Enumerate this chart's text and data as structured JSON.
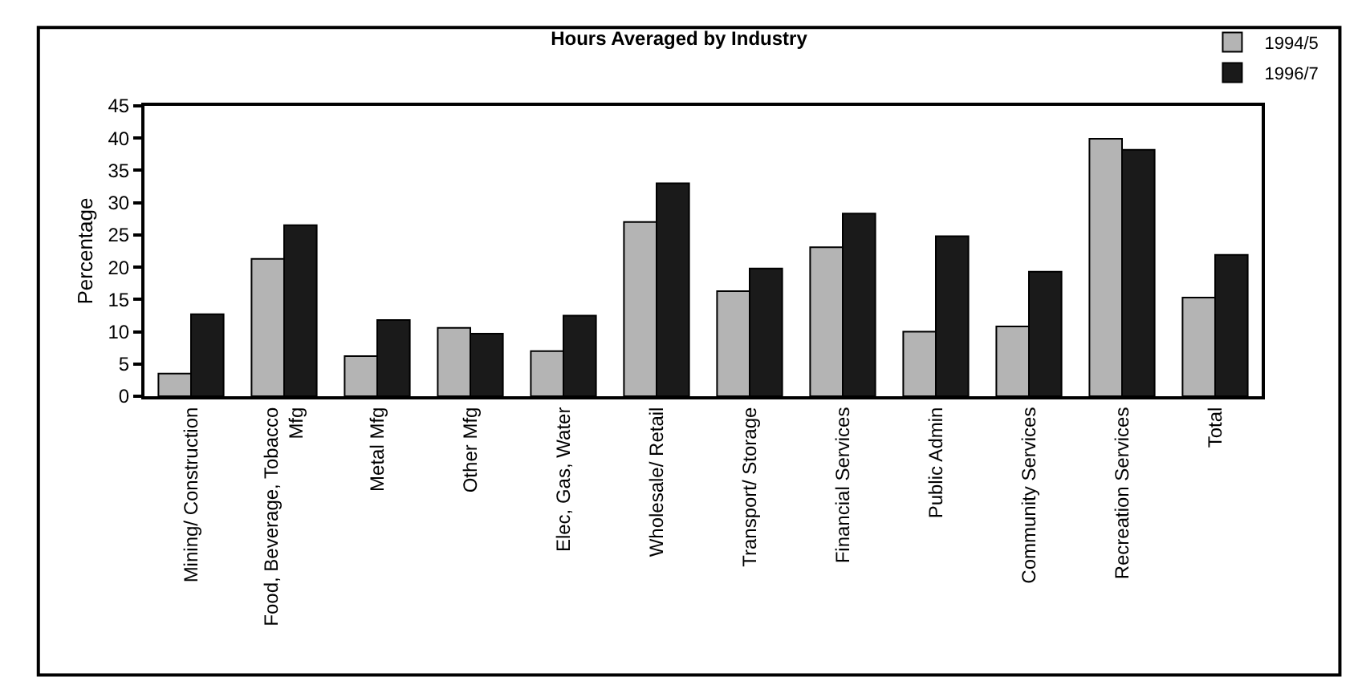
{
  "chart_data": {
    "type": "bar",
    "title": "Hours Averaged by Industry",
    "ylabel": "Percentage",
    "categories": [
      "Mining/ Construction",
      "Food, Beverage, Tobacco\nMfg",
      "Metal Mfg",
      "Other Mfg",
      "Elec, Gas, Water",
      "Wholesale/ Retail",
      "Transport/ Storage",
      "Financial Services",
      "Public Admin",
      "Community Services",
      "Recreation Services",
      "Total"
    ],
    "series": [
      {
        "name": "1994/5",
        "color": "#b4b4b4",
        "values": [
          3.5,
          21.3,
          6.2,
          10.6,
          7.0,
          27.0,
          16.3,
          23.1,
          10.0,
          10.8,
          39.9,
          15.3
        ]
      },
      {
        "name": "1996/7",
        "color": "#1a1a1a",
        "values": [
          12.7,
          26.5,
          11.8,
          9.7,
          12.5,
          33.0,
          19.8,
          28.3,
          24.8,
          19.3,
          38.2,
          21.9
        ]
      }
    ],
    "ylim": [
      0,
      45
    ],
    "yticks": [
      0,
      5,
      10,
      15,
      20,
      25,
      30,
      35,
      40,
      45
    ],
    "grid": false,
    "legend": "top right"
  }
}
